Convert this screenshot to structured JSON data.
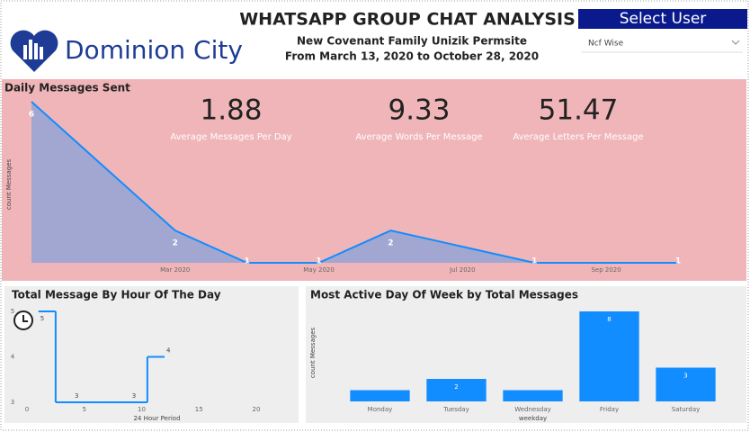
{
  "header": {
    "logo": "Dominion City",
    "title": "WHATSAPP GROUP CHAT ANALYSIS",
    "subtitle": "New Covenant Family Unizik Permsite",
    "period": "From March 13, 2020 to October 28, 2020"
  },
  "filter": {
    "label": "Select User",
    "value": "Ncf Wise"
  },
  "kpis": [
    {
      "value": 1.88,
      "label": "Average Messages Per Day"
    },
    {
      "value": 9.33,
      "label": "Average Words Per Message"
    },
    {
      "value": 51.47,
      "label": "Average Letters Per Message"
    }
  ],
  "chart_data": [
    {
      "type": "area",
      "title": "Daily Messages Sent",
      "y_label": "count Messages",
      "x": [
        "2020-01",
        "2020-03",
        "2020-04",
        "2020-05",
        "2020-06",
        "2020-08",
        "2020-10"
      ],
      "values": [
        6,
        2,
        1,
        1,
        2,
        1,
        1
      ],
      "xlim": [
        "2020-01",
        "2020-10"
      ],
      "xticks": [
        {
          "value": "2020-03",
          "label": "Mar 2020"
        },
        {
          "value": "2020-05",
          "label": "May 2020"
        },
        {
          "value": "2020-07",
          "label": "Jul 2020"
        },
        {
          "value": "2020-09",
          "label": "Sep 2020"
        }
      ],
      "ylim": [
        1,
        6
      ],
      "color": "#118dff"
    },
    {
      "type": "step",
      "title": "Total Message By Hour Of The Day",
      "x_label": "24 Hour Period",
      "x": [
        1,
        4,
        9,
        12
      ],
      "values": [
        5,
        3,
        3,
        4
      ],
      "xlim": [
        0,
        20
      ],
      "xticks": [
        0,
        5,
        10,
        15,
        20
      ],
      "ylim": [
        3,
        5
      ],
      "yticks": [
        3,
        4,
        5
      ],
      "color": "#118dff"
    },
    {
      "type": "bar",
      "title": "Most Active Day Of Week by Total Messages",
      "x_label": "weekday",
      "y_label": "count Messages",
      "categories": [
        "Monday",
        "Tuesday",
        "Wednesday",
        "Friday",
        "Saturday"
      ],
      "values": [
        1,
        2,
        1,
        8,
        3
      ],
      "value_labels": [
        null,
        "2",
        null,
        "8",
        "3"
      ],
      "ylim": [
        0,
        8
      ],
      "color": "#118dff"
    }
  ]
}
